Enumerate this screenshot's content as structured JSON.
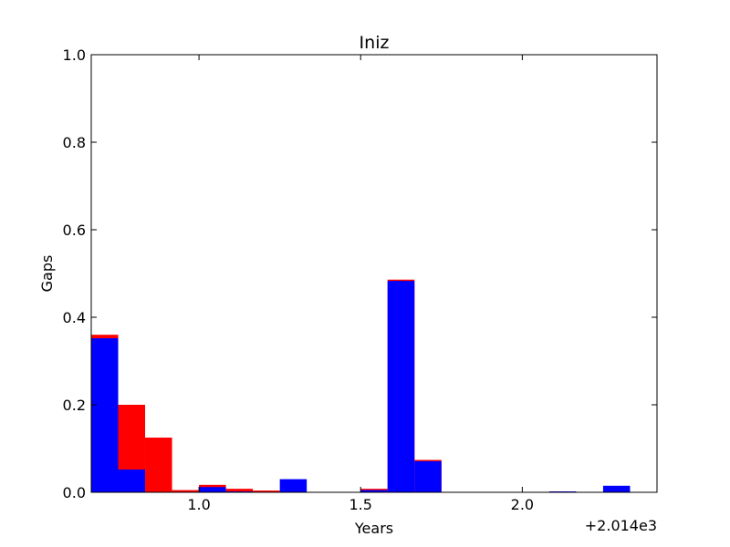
{
  "chart_data": {
    "type": "bar",
    "title": "Iniz",
    "xlabel": "Years",
    "ylabel": "Gaps",
    "x_offset_label": "+2.014e3",
    "xlim": [
      0.6667,
      2.4167
    ],
    "ylim": [
      0,
      1.0
    ],
    "grid": false,
    "bin_width": 0.0833,
    "x_ticks": [
      {
        "value": 1.0,
        "label": "1.0"
      },
      {
        "value": 1.5,
        "label": "1.5"
      },
      {
        "value": 2.0,
        "label": "2.0"
      }
    ],
    "y_ticks": [
      {
        "value": 0.0,
        "label": "0.0"
      },
      {
        "value": 0.2,
        "label": "0.2"
      },
      {
        "value": 0.4,
        "label": "0.4"
      },
      {
        "value": 0.6,
        "label": "0.6"
      },
      {
        "value": 0.8,
        "label": "0.8"
      },
      {
        "value": 1.0,
        "label": "1.0"
      }
    ],
    "x": [
      0.6667,
      0.75,
      0.8333,
      0.9167,
      1.0,
      1.0833,
      1.1667,
      1.25,
      1.3333,
      1.4167,
      1.5,
      1.5833,
      1.6667,
      1.75,
      1.8333,
      1.9167,
      2.0,
      2.0833,
      2.1667,
      2.25
    ],
    "series": [
      {
        "color": "#ff0000",
        "values": [
          0.36,
          0.2,
          0.125,
          0.005,
          0.017,
          0.008,
          0.004,
          0.0,
          0.001,
          0.001,
          0.008,
          0.486,
          0.074,
          0.0,
          0.0,
          0.0,
          0.001,
          0.002,
          0.0,
          0.0
        ]
      },
      {
        "color": "#0000ff",
        "values": [
          0.352,
          0.052,
          0.0,
          0.001,
          0.012,
          0.002,
          0.001,
          0.03,
          0.0,
          0.0,
          0.005,
          0.483,
          0.071,
          0.0,
          0.0,
          0.0,
          0.0,
          0.002,
          0.0,
          0.015
        ]
      }
    ]
  }
}
